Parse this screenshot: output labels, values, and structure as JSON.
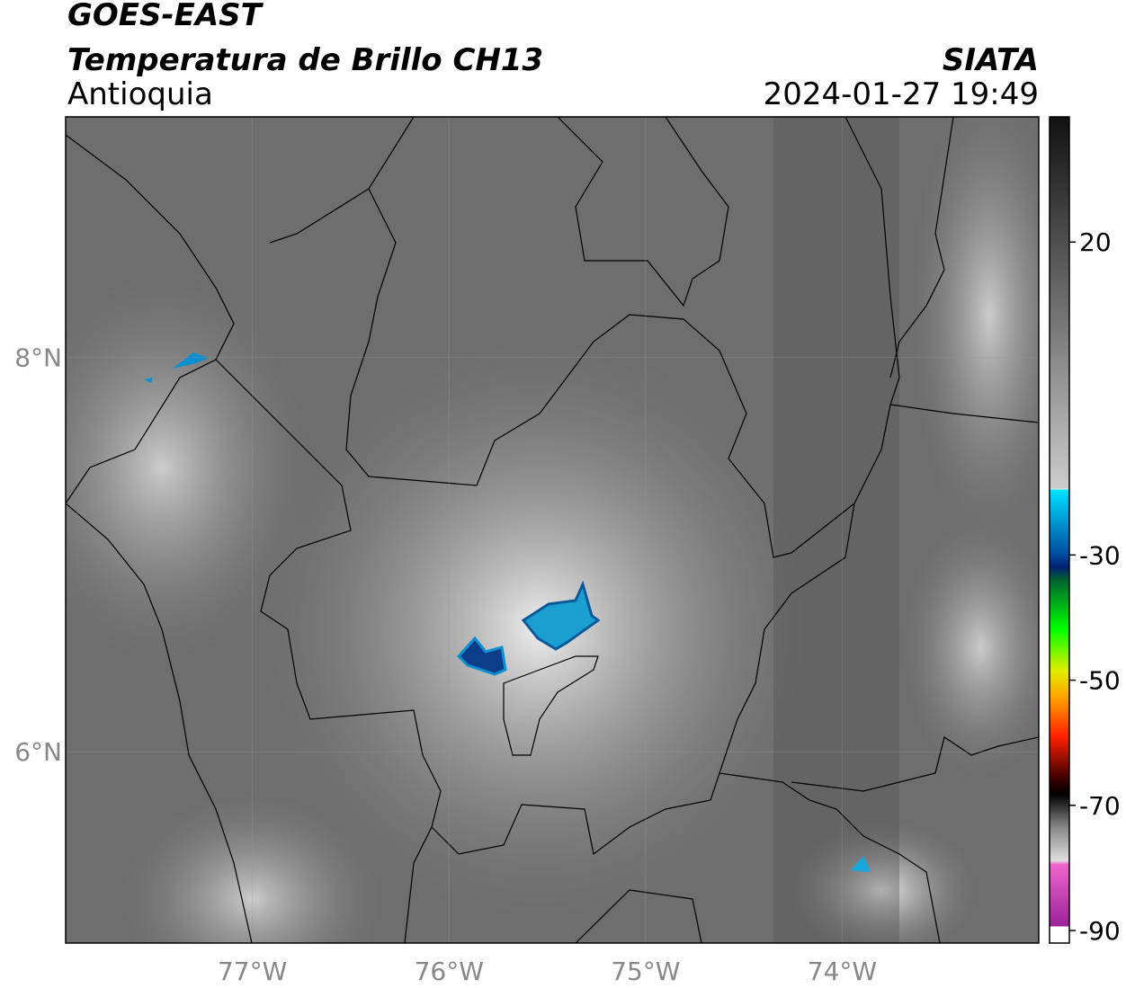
{
  "header": {
    "title": "GOES-EAST",
    "subtitle": "Temperatura de Brillo CH13",
    "region": "Antioquia",
    "source": "SIATA",
    "datetime": "2024-01-27 19:49"
  },
  "map": {
    "lon_lim": [
      -77.95,
      -73
    ],
    "lat_lim": [
      5.03,
      9.22
    ],
    "lon_ticks": [
      {
        "value": -77,
        "label": "77°W"
      },
      {
        "value": -76,
        "label": "76°W"
      },
      {
        "value": -75,
        "label": "75°W"
      },
      {
        "value": -74,
        "label": "74°W"
      }
    ],
    "lat_ticks": [
      {
        "value": 8,
        "label": "8°N"
      },
      {
        "value": 6,
        "label": "6°N"
      }
    ],
    "grid": true
  },
  "colorbar": {
    "lim": [
      -92,
      40
    ],
    "ticks": [
      20,
      -30,
      -50,
      -70,
      -90
    ]
  }
}
